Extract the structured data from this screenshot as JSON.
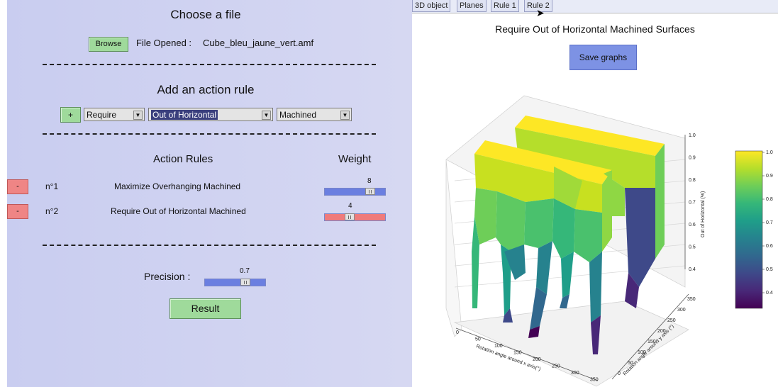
{
  "left": {
    "choose_title": "Choose a file",
    "browse_label": "Browse",
    "file_opened_label": "File Opened :",
    "file_name": "Cube_bleu_jaune_vert.amf",
    "add_rule_title": "Add an action rule",
    "add_button": "+",
    "selects": {
      "action": "Require",
      "criterion": "Out of Horizontal",
      "surface": "Machined"
    },
    "rules_header": "Action Rules",
    "weight_header": "Weight",
    "rules": [
      {
        "remove": "-",
        "id": "n°1",
        "text": "Maximize  Overhanging  Machined",
        "weight": "8",
        "weight_value": 8,
        "weight_max": 10,
        "color": "#6b7fe0"
      },
      {
        "remove": "-",
        "id": "n°2",
        "text": "Require  Out of Horizontal  Machined",
        "weight": "4",
        "weight_value": 4,
        "weight_max": 10,
        "color": "#ef7b7b"
      }
    ],
    "precision_label": "Precision :",
    "precision_value": "0.7",
    "precision_fraction": 0.7,
    "result_label": "Result"
  },
  "right": {
    "tabs": [
      "3D object",
      "Planes",
      "Rule 1",
      "Rule 2"
    ],
    "plot_title": "Require  Out of Horizontal  Machined Surfaces",
    "save_label": "Save graphs",
    "zlabel": "Out of Horizontal (%)",
    "xlabel": "Rotation angle around x axis(°)",
    "ylabel": "Rotation angle around y axis (°)",
    "z_ticks": [
      "1.0",
      "0.9",
      "0.8",
      "0.7",
      "0.6",
      "0.5",
      "0.4"
    ],
    "x_ticks": [
      "0",
      "50",
      "100",
      "150",
      "200",
      "250",
      "300",
      "350"
    ],
    "y_ticks": [
      "0",
      "50",
      "100",
      "150",
      "200",
      "250",
      "300",
      "350"
    ],
    "colorbar_ticks": [
      "1.0",
      "0.9",
      "0.8",
      "0.7",
      "0.6",
      "0.5",
      "0.4"
    ],
    "colormap": [
      "#fde725",
      "#b5de2b",
      "#6ece58",
      "#35b779",
      "#1f9e89",
      "#26828e",
      "#31688e",
      "#3e4989",
      "#482878",
      "#440154"
    ]
  }
}
